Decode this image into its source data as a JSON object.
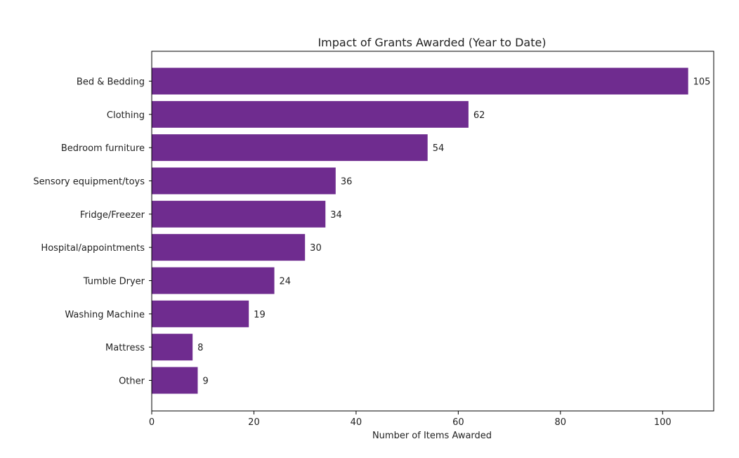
{
  "chart_data": {
    "type": "bar",
    "orientation": "horizontal",
    "title": "Impact of Grants Awarded (Year to Date)",
    "xlabel": "Number of Items Awarded",
    "ylabel": "",
    "xlim": [
      0,
      110
    ],
    "xticks": [
      0,
      20,
      40,
      60,
      80,
      100
    ],
    "categories": [
      "Bed & Bedding",
      "Clothing",
      "Bedroom furniture",
      "Sensory equipment/toys",
      "Fridge/Freezer",
      "Hospital/appointments",
      "Tumble Dryer",
      "Washing Machine",
      "Mattress",
      "Other"
    ],
    "values": [
      105,
      62,
      54,
      36,
      34,
      30,
      24,
      19,
      8,
      9
    ],
    "data_labels": [
      "105",
      "62",
      "54",
      "36",
      "34",
      "30",
      "24",
      "19",
      "8",
      "9"
    ],
    "bar_color": "#6f2c8f",
    "grid": false,
    "legend": "none"
  }
}
